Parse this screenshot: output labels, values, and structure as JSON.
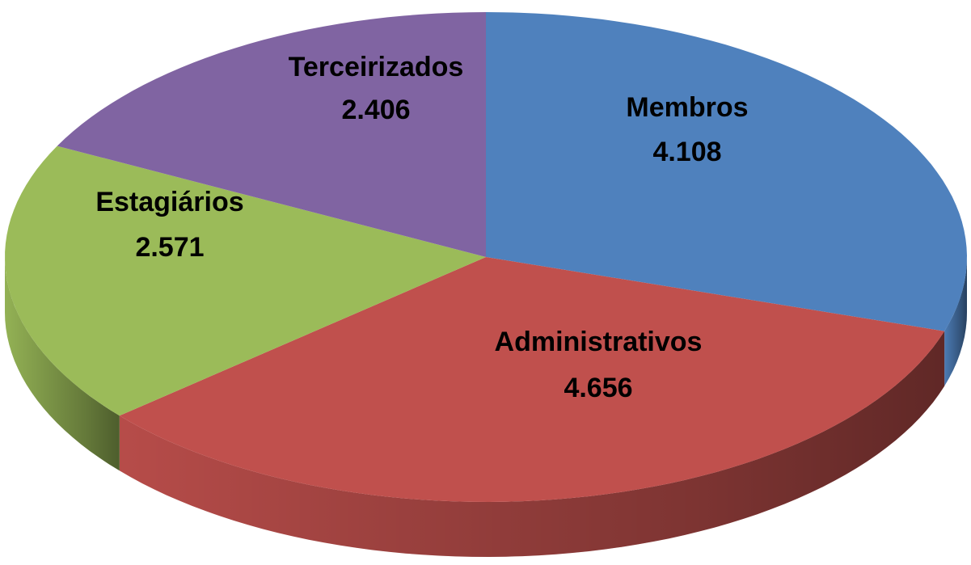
{
  "chart_data": {
    "type": "pie3d",
    "categories": [
      "Membros",
      "Administrativos",
      "Estagiários",
      "Terceirizados"
    ],
    "values": [
      4108,
      4656,
      2571,
      2406
    ],
    "value_labels": [
      "4.108",
      "4.656",
      "2.571",
      "2.406"
    ],
    "colors": [
      "#4f81bd",
      "#c0504d",
      "#9bbb59",
      "#8064a2"
    ]
  }
}
